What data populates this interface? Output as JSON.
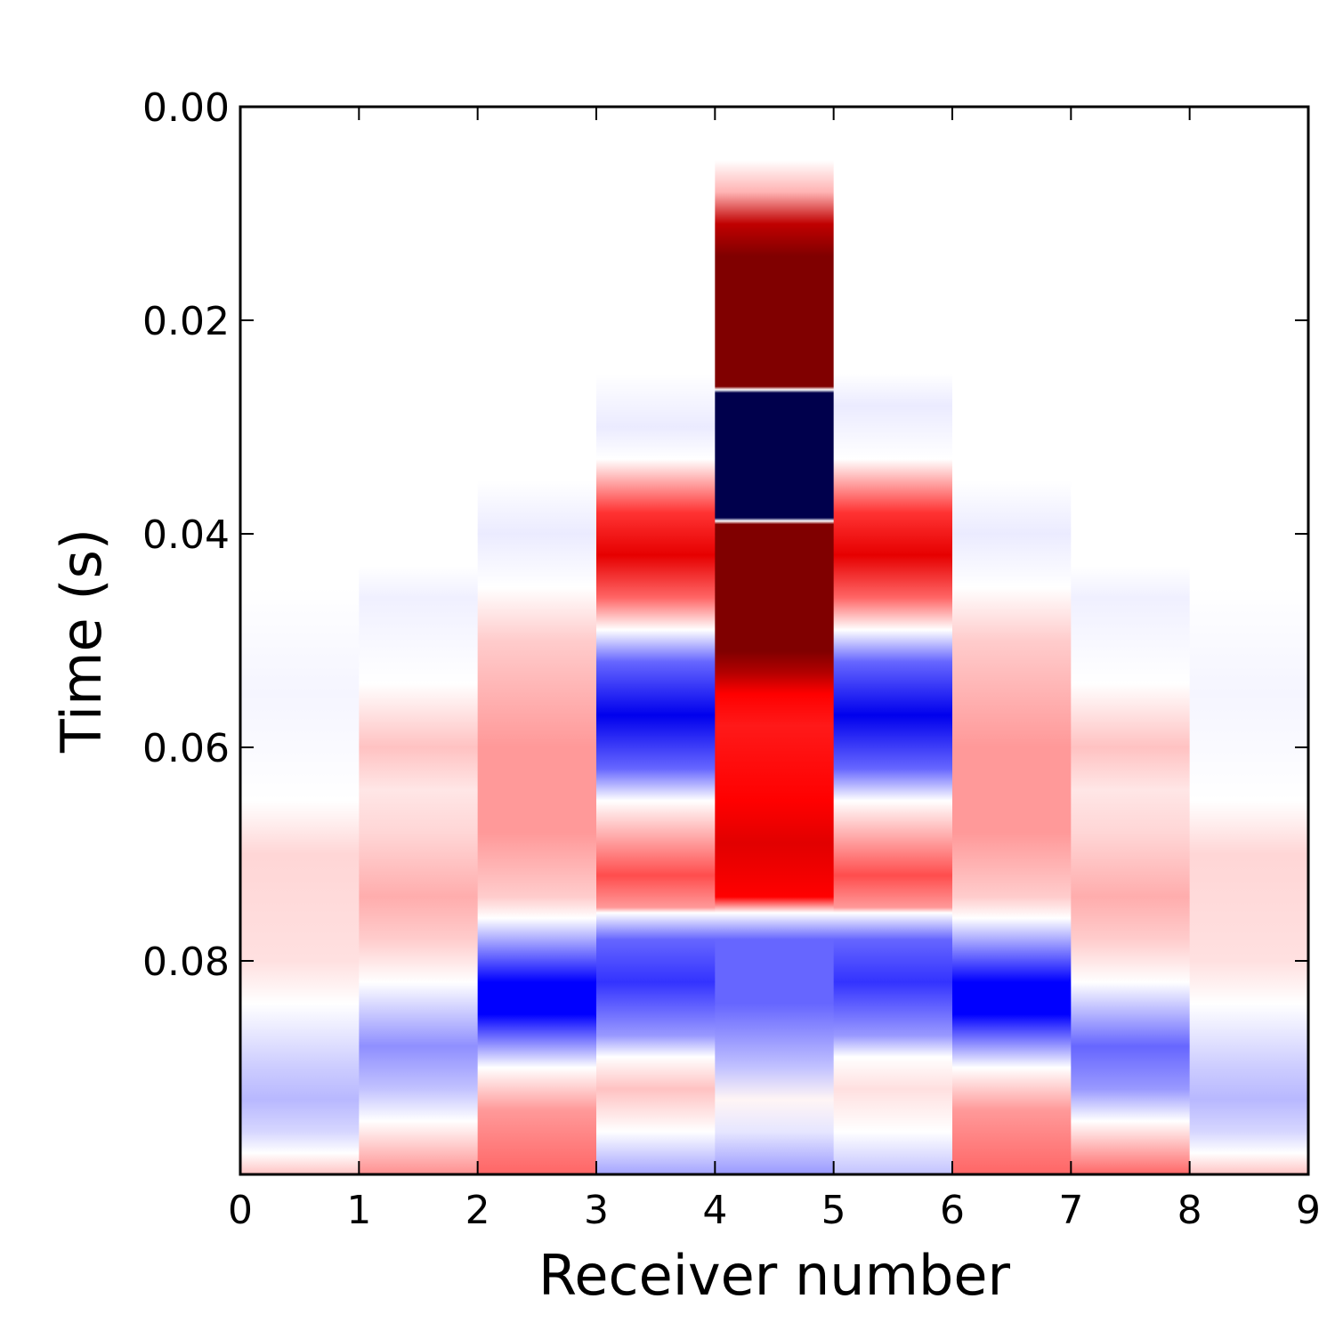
{
  "chart_data": {
    "type": "heatmap",
    "title": "",
    "xlabel": "Receiver number",
    "ylabel": "Time (s)",
    "xlim": [
      0,
      9
    ],
    "ylim": [
      0.1,
      0.0
    ],
    "y_inverted": true,
    "x_ticks": [
      "0",
      "1",
      "2",
      "3",
      "4",
      "5",
      "6",
      "7",
      "8",
      "9"
    ],
    "y_ticks": [
      "0.00",
      "0.02",
      "0.04",
      "0.06",
      "0.08"
    ],
    "y_tick_values": [
      0.0,
      0.02,
      0.04,
      0.06,
      0.08
    ],
    "colormap": "seismic",
    "colors": {
      "dark_red": "#800000",
      "red": "#ff0000",
      "white": "#ffffff",
      "blue": "#0000ff",
      "dark_blue": "#00004c"
    },
    "value_scale": "normalized amplitude, -1 (dark blue) to +1 (dark red)",
    "columns": [
      {
        "receiver": 0,
        "profile": [
          [
            0.0,
            0
          ],
          [
            0.045,
            0
          ],
          [
            0.055,
            -0.02
          ],
          [
            0.065,
            0
          ],
          [
            0.07,
            0.08
          ],
          [
            0.08,
            0.06
          ],
          [
            0.084,
            0
          ],
          [
            0.09,
            -0.1
          ],
          [
            0.093,
            -0.14
          ],
          [
            0.096,
            -0.08
          ],
          [
            0.098,
            0
          ],
          [
            0.1,
            0.12
          ]
        ]
      },
      {
        "receiver": 1,
        "profile": [
          [
            0.0,
            0
          ],
          [
            0.043,
            0
          ],
          [
            0.046,
            -0.03
          ],
          [
            0.054,
            0
          ],
          [
            0.06,
            0.12
          ],
          [
            0.064,
            0.05
          ],
          [
            0.068,
            0.08
          ],
          [
            0.074,
            0.16
          ],
          [
            0.078,
            0.1
          ],
          [
            0.082,
            0
          ],
          [
            0.088,
            -0.22
          ],
          [
            0.092,
            -0.12
          ],
          [
            0.095,
            0
          ],
          [
            0.1,
            0.22
          ]
        ]
      },
      {
        "receiver": 2,
        "profile": [
          [
            0.0,
            0
          ],
          [
            0.035,
            0
          ],
          [
            0.04,
            -0.04
          ],
          [
            0.045,
            0
          ],
          [
            0.05,
            0.1
          ],
          [
            0.06,
            0.2
          ],
          [
            0.068,
            0.2
          ],
          [
            0.074,
            0.1
          ],
          [
            0.076,
            0
          ],
          [
            0.082,
            -0.5
          ],
          [
            0.085,
            -0.5
          ],
          [
            0.088,
            -0.2
          ],
          [
            0.09,
            0
          ],
          [
            0.094,
            0.2
          ],
          [
            0.1,
            0.3
          ]
        ]
      },
      {
        "receiver": 3,
        "profile": [
          [
            0.0,
            0
          ],
          [
            0.025,
            0
          ],
          [
            0.03,
            -0.04
          ],
          [
            0.033,
            0
          ],
          [
            0.038,
            0.4
          ],
          [
            0.042,
            0.6
          ],
          [
            0.046,
            0.3
          ],
          [
            0.049,
            0
          ],
          [
            0.052,
            -0.3
          ],
          [
            0.057,
            -0.55
          ],
          [
            0.062,
            -0.3
          ],
          [
            0.065,
            0
          ],
          [
            0.068,
            0.15
          ],
          [
            0.072,
            0.35
          ],
          [
            0.075,
            0.2
          ],
          [
            0.0755,
            0
          ],
          [
            0.078,
            -0.3
          ],
          [
            0.082,
            -0.4
          ],
          [
            0.087,
            -0.2
          ],
          [
            0.089,
            0
          ],
          [
            0.092,
            0.12
          ],
          [
            0.096,
            0
          ],
          [
            0.1,
            -0.18
          ]
        ]
      },
      {
        "receiver": 4,
        "profile": [
          [
            0.0,
            0
          ],
          [
            0.005,
            0
          ],
          [
            0.008,
            0.15
          ],
          [
            0.011,
            0.75
          ],
          [
            0.014,
            1.0
          ],
          [
            0.0262,
            1.0
          ],
          [
            0.0265,
            0
          ],
          [
            0.0268,
            -1.0
          ],
          [
            0.0385,
            -1.0
          ],
          [
            0.0388,
            0
          ],
          [
            0.0391,
            1.0
          ],
          [
            0.051,
            1.0
          ],
          [
            0.053,
            0.8
          ],
          [
            0.055,
            0.5
          ],
          [
            0.058,
            0.45
          ],
          [
            0.065,
            0.5
          ],
          [
            0.069,
            0.62
          ],
          [
            0.074,
            0.5
          ],
          [
            0.0755,
            0
          ],
          [
            0.078,
            -0.3
          ],
          [
            0.084,
            -0.3
          ],
          [
            0.09,
            -0.12
          ],
          [
            0.093,
            0.02
          ],
          [
            0.096,
            -0.05
          ],
          [
            0.1,
            -0.2
          ]
        ]
      },
      {
        "receiver": 5,
        "profile": [
          [
            0.0,
            0
          ],
          [
            0.025,
            0
          ],
          [
            0.028,
            -0.04
          ],
          [
            0.033,
            0
          ],
          [
            0.038,
            0.4
          ],
          [
            0.042,
            0.6
          ],
          [
            0.046,
            0.3
          ],
          [
            0.049,
            0
          ],
          [
            0.052,
            -0.3
          ],
          [
            0.057,
            -0.55
          ],
          [
            0.062,
            -0.3
          ],
          [
            0.065,
            0
          ],
          [
            0.068,
            0.15
          ],
          [
            0.072,
            0.35
          ],
          [
            0.075,
            0.2
          ],
          [
            0.0755,
            0
          ],
          [
            0.078,
            -0.3
          ],
          [
            0.082,
            -0.4
          ],
          [
            0.087,
            -0.2
          ],
          [
            0.089,
            0
          ],
          [
            0.092,
            0.06
          ],
          [
            0.096,
            0
          ],
          [
            0.1,
            -0.12
          ]
        ]
      },
      {
        "receiver": 6,
        "profile": [
          [
            0.0,
            0
          ],
          [
            0.035,
            0
          ],
          [
            0.04,
            -0.04
          ],
          [
            0.045,
            0
          ],
          [
            0.05,
            0.1
          ],
          [
            0.06,
            0.2
          ],
          [
            0.068,
            0.2
          ],
          [
            0.074,
            0.1
          ],
          [
            0.076,
            0
          ],
          [
            0.082,
            -0.5
          ],
          [
            0.085,
            -0.5
          ],
          [
            0.088,
            -0.2
          ],
          [
            0.09,
            0
          ],
          [
            0.094,
            0.2
          ],
          [
            0.1,
            0.3
          ]
        ]
      },
      {
        "receiver": 7,
        "profile": [
          [
            0.0,
            0
          ],
          [
            0.043,
            0
          ],
          [
            0.046,
            -0.03
          ],
          [
            0.054,
            0
          ],
          [
            0.06,
            0.12
          ],
          [
            0.064,
            0.05
          ],
          [
            0.068,
            0.08
          ],
          [
            0.074,
            0.16
          ],
          [
            0.078,
            0.1
          ],
          [
            0.082,
            0
          ],
          [
            0.088,
            -0.3
          ],
          [
            0.092,
            -0.2
          ],
          [
            0.095,
            0
          ],
          [
            0.1,
            0.3
          ]
        ]
      },
      {
        "receiver": 8,
        "profile": [
          [
            0.0,
            0
          ],
          [
            0.045,
            0
          ],
          [
            0.055,
            -0.02
          ],
          [
            0.065,
            0
          ],
          [
            0.07,
            0.08
          ],
          [
            0.08,
            0.06
          ],
          [
            0.084,
            0
          ],
          [
            0.09,
            -0.1
          ],
          [
            0.093,
            -0.14
          ],
          [
            0.096,
            -0.08
          ],
          [
            0.098,
            0
          ],
          [
            0.1,
            0.12
          ]
        ]
      }
    ]
  }
}
